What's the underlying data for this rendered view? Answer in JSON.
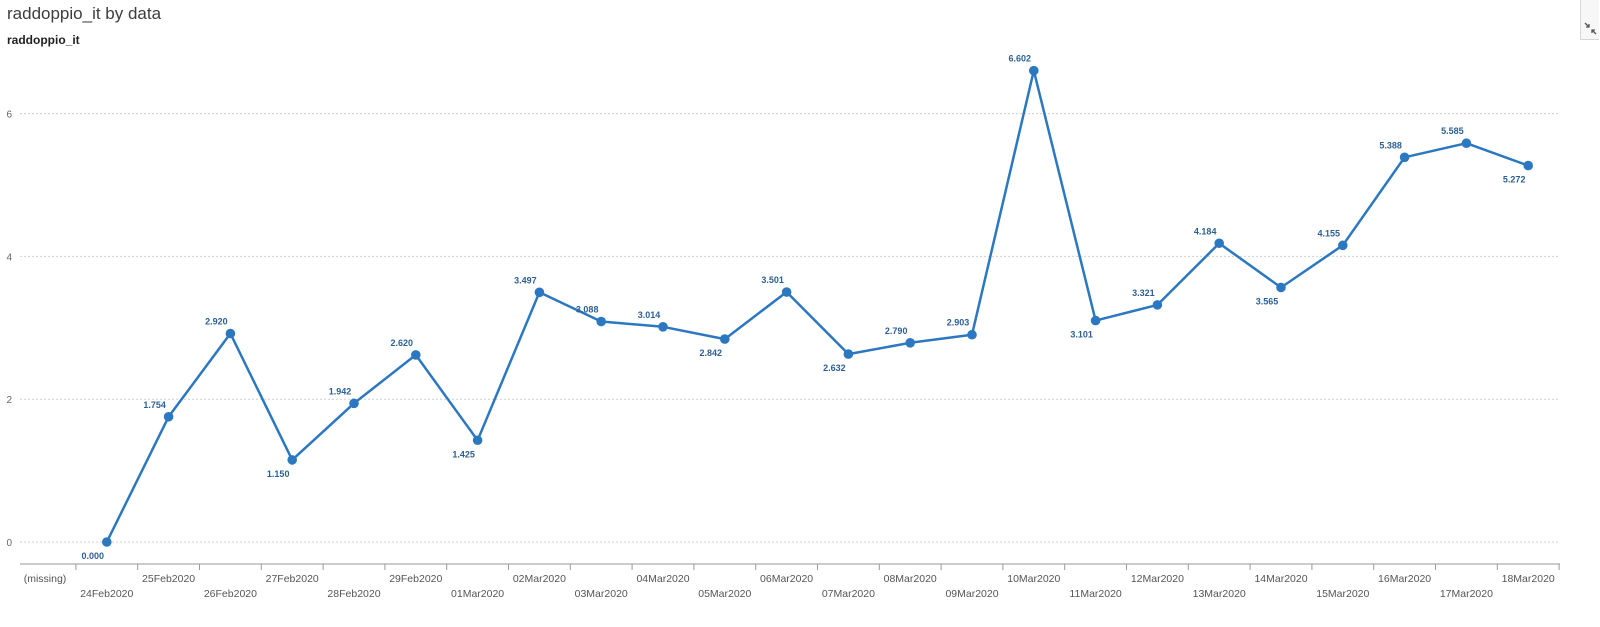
{
  "header": {
    "title": "raddoppio_it by data",
    "series_label": "raddoppio_it"
  },
  "toolbar": {
    "maximize_icon": "shrink-arrows-icon"
  },
  "colors": {
    "series": "#2b78c0",
    "data_label": "#2c5f95",
    "grid": "#cfcfcf",
    "axis": "#9a9a9a"
  },
  "chart_data": {
    "type": "line",
    "title": "raddoppio_it by data",
    "xlabel": "",
    "ylabel": "raddoppio_it",
    "categories": [
      "(missing)",
      "24Feb2020",
      "25Feb2020",
      "26Feb2020",
      "27Feb2020",
      "28Feb2020",
      "29Feb2020",
      "01Mar2020",
      "02Mar2020",
      "03Mar2020",
      "04Mar2020",
      "05Mar2020",
      "06Mar2020",
      "07Mar2020",
      "08Mar2020",
      "09Mar2020",
      "10Mar2020",
      "11Mar2020",
      "12Mar2020",
      "13Mar2020",
      "14Mar2020",
      "15Mar2020",
      "16Mar2020",
      "17Mar2020",
      "18Mar2020"
    ],
    "series": [
      {
        "values": [
          null,
          0.0,
          1.754,
          2.92,
          1.15,
          1.942,
          2.62,
          1.425,
          3.497,
          3.088,
          3.014,
          2.842,
          3.501,
          2.632,
          2.79,
          2.903,
          6.602,
          3.101,
          3.321,
          4.184,
          3.565,
          4.155,
          5.388,
          5.585,
          5.272
        ],
        "labels": [
          "",
          "0.000",
          "1.754",
          "2.920",
          "1.150",
          "1.942",
          "2.620",
          "1.425",
          "3.497",
          "3.088",
          "3.014",
          "2.842",
          "3.501",
          "2.632",
          "2.790",
          "2.903",
          "6.602",
          "3.101",
          "3.321",
          "4.184",
          "3.565",
          "4.155",
          "5.388",
          "5.585",
          "5.272"
        ]
      }
    ],
    "y_ticks": [
      "0",
      "2",
      "4",
      "6"
    ],
    "ylim": [
      0,
      7
    ],
    "grid": true,
    "legend": "none"
  }
}
